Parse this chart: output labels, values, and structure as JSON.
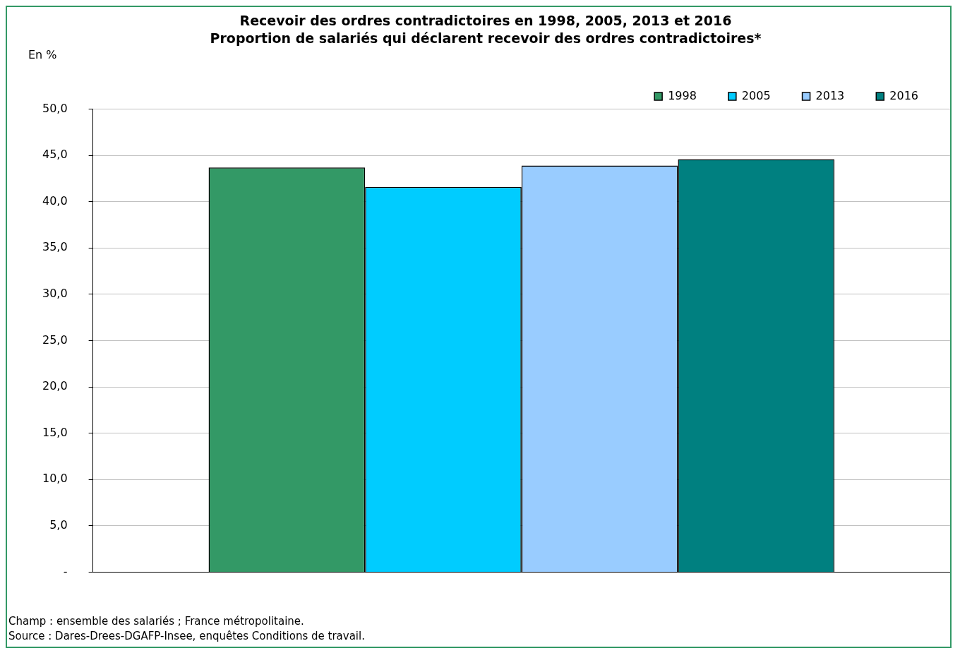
{
  "chart_data": {
    "type": "bar",
    "title": "Recevoir des ordres contradictoires en 1998, 2005, 2013 et 2016",
    "subtitle": "Proportion de salariés qui déclarent recevoir des ordres contradictoires*",
    "ylabel": "En %",
    "categories": [
      null
    ],
    "series": [
      {
        "name": "1998",
        "color": "#339966",
        "values": [
          43.7
        ]
      },
      {
        "name": "2005",
        "color": "#00ccff",
        "values": [
          41.6
        ]
      },
      {
        "name": "2013",
        "color": "#99ccff",
        "values": [
          43.9
        ]
      },
      {
        "name": "2016",
        "color": "#008080",
        "values": [
          44.6
        ]
      }
    ],
    "ylim": [
      0,
      50
    ],
    "yticks": [
      {
        "value": 0,
        "label": "-"
      },
      {
        "value": 5,
        "label": "5,0"
      },
      {
        "value": 10,
        "label": "10,0"
      },
      {
        "value": 15,
        "label": "15,0"
      },
      {
        "value": 20,
        "label": "20,0"
      },
      {
        "value": 25,
        "label": "25,0"
      },
      {
        "value": 30,
        "label": "30,0"
      },
      {
        "value": 35,
        "label": "35,0"
      },
      {
        "value": 40,
        "label": "40,0"
      },
      {
        "value": 45,
        "label": "45,0"
      },
      {
        "value": 50,
        "label": "50,0"
      }
    ],
    "grid": "y",
    "legend": "top right",
    "annotations": [
      "Champ : ensemble des salariés ; France métropolitaine.",
      "Source : Dares-Drees-DGAFP-Insee, enquêtes Conditions de travail."
    ]
  }
}
